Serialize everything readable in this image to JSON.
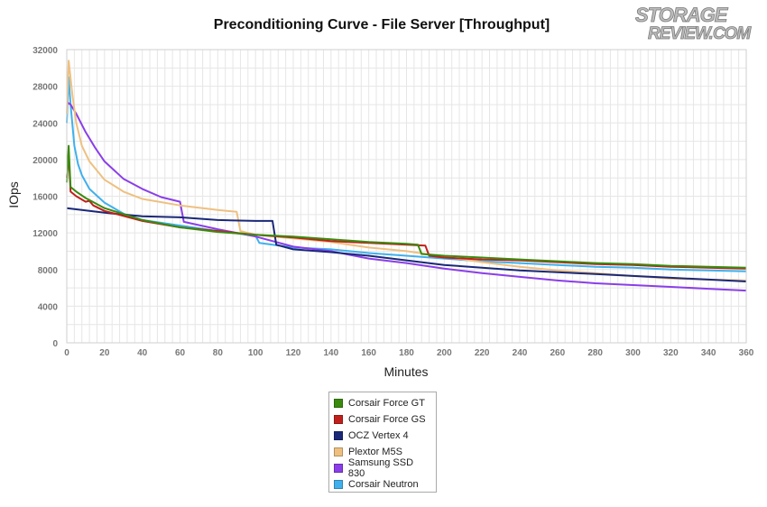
{
  "chart_data": {
    "type": "line",
    "title": "Preconditioning Curve - File Server [Throughput]",
    "xlabel": "Minutes",
    "ylabel": "IOps",
    "xlim": [
      0,
      360
    ],
    "ylim": [
      0,
      32000
    ],
    "x_ticks": [
      "0",
      "20",
      "40",
      "60",
      "80",
      "100",
      "120",
      "140",
      "160",
      "180",
      "200",
      "220",
      "240",
      "260",
      "280",
      "300",
      "320",
      "340",
      "360"
    ],
    "y_ticks": [
      "0",
      "4000",
      "8000",
      "12000",
      "16000",
      "20000",
      "24000",
      "28000",
      "32000"
    ],
    "grid": true,
    "legend_position": "bottom",
    "series": [
      {
        "name": "Corsair Force GT",
        "color": "#3a8a0e",
        "points": [
          [
            0,
            17500
          ],
          [
            1,
            21500
          ],
          [
            2,
            17000
          ],
          [
            5,
            16500
          ],
          [
            10,
            15800
          ],
          [
            20,
            14700
          ],
          [
            40,
            13400
          ],
          [
            60,
            12600
          ],
          [
            80,
            12100
          ],
          [
            100,
            11800
          ],
          [
            120,
            11600
          ],
          [
            140,
            11300
          ],
          [
            160,
            11000
          ],
          [
            180,
            10800
          ],
          [
            186,
            10700
          ],
          [
            188,
            9700
          ],
          [
            200,
            9500
          ],
          [
            220,
            9300
          ],
          [
            240,
            9100
          ],
          [
            260,
            8900
          ],
          [
            280,
            8700
          ],
          [
            300,
            8600
          ],
          [
            320,
            8400
          ],
          [
            340,
            8300
          ],
          [
            360,
            8200
          ]
        ]
      },
      {
        "name": "Corsair Force GS",
        "color": "#c0201c",
        "points": [
          [
            0,
            18000
          ],
          [
            1,
            20700
          ],
          [
            2,
            16500
          ],
          [
            5,
            16000
          ],
          [
            10,
            15400
          ],
          [
            12,
            15500
          ],
          [
            14,
            15000
          ],
          [
            20,
            14400
          ],
          [
            40,
            13300
          ],
          [
            60,
            12600
          ],
          [
            80,
            12200
          ],
          [
            100,
            11800
          ],
          [
            120,
            11500
          ],
          [
            140,
            11100
          ],
          [
            160,
            10900
          ],
          [
            180,
            10700
          ],
          [
            190,
            10600
          ],
          [
            192,
            9500
          ],
          [
            200,
            9300
          ],
          [
            220,
            9100
          ],
          [
            240,
            9000
          ],
          [
            260,
            8800
          ],
          [
            280,
            8600
          ],
          [
            300,
            8500
          ],
          [
            320,
            8300
          ],
          [
            340,
            8200
          ],
          [
            360,
            8100
          ]
        ]
      },
      {
        "name": "OCZ Vertex 4",
        "color": "#1a2878",
        "points": [
          [
            0,
            14700
          ],
          [
            20,
            14200
          ],
          [
            40,
            13800
          ],
          [
            60,
            13700
          ],
          [
            80,
            13400
          ],
          [
            100,
            13300
          ],
          [
            109,
            13300
          ],
          [
            111,
            10700
          ],
          [
            120,
            10200
          ],
          [
            140,
            9900
          ],
          [
            160,
            9500
          ],
          [
            180,
            9000
          ],
          [
            200,
            8500
          ],
          [
            220,
            8200
          ],
          [
            240,
            7900
          ],
          [
            260,
            7700
          ],
          [
            280,
            7500
          ],
          [
            300,
            7300
          ],
          [
            320,
            7100
          ],
          [
            340,
            6900
          ],
          [
            360,
            6700
          ]
        ]
      },
      {
        "name": "Plextor M5S",
        "color": "#eec080",
        "points": [
          [
            0,
            25000
          ],
          [
            1,
            30800
          ],
          [
            3,
            27000
          ],
          [
            5,
            24000
          ],
          [
            8,
            21500
          ],
          [
            12,
            19800
          ],
          [
            20,
            17800
          ],
          [
            30,
            16500
          ],
          [
            40,
            15700
          ],
          [
            60,
            15000
          ],
          [
            80,
            14500
          ],
          [
            90,
            14300
          ],
          [
            92,
            12200
          ],
          [
            100,
            11800
          ],
          [
            120,
            11400
          ],
          [
            140,
            11000
          ],
          [
            160,
            10400
          ],
          [
            180,
            10000
          ],
          [
            200,
            9400
          ],
          [
            220,
            8800
          ],
          [
            240,
            8300
          ],
          [
            260,
            7900
          ],
          [
            280,
            7600
          ],
          [
            300,
            7300
          ],
          [
            320,
            7000
          ],
          [
            340,
            6900
          ],
          [
            360,
            6800
          ]
        ]
      },
      {
        "name": "Samsung SSD 830",
        "color": "#8a3ee8",
        "points": [
          [
            0,
            26300
          ],
          [
            2,
            26000
          ],
          [
            5,
            25000
          ],
          [
            10,
            23000
          ],
          [
            15,
            21300
          ],
          [
            20,
            19800
          ],
          [
            30,
            17900
          ],
          [
            40,
            16800
          ],
          [
            50,
            15900
          ],
          [
            60,
            15400
          ],
          [
            62,
            13200
          ],
          [
            80,
            12400
          ],
          [
            100,
            11600
          ],
          [
            120,
            10500
          ],
          [
            140,
            10000
          ],
          [
            160,
            9200
          ],
          [
            180,
            8700
          ],
          [
            200,
            8100
          ],
          [
            220,
            7600
          ],
          [
            240,
            7200
          ],
          [
            260,
            6800
          ],
          [
            280,
            6500
          ],
          [
            300,
            6300
          ],
          [
            320,
            6100
          ],
          [
            340,
            5900
          ],
          [
            360,
            5700
          ]
        ]
      },
      {
        "name": "Corsair Neutron",
        "color": "#40b0ec",
        "points": [
          [
            0,
            24000
          ],
          [
            1,
            29000
          ],
          [
            2,
            26000
          ],
          [
            4,
            21500
          ],
          [
            6,
            19500
          ],
          [
            8,
            18300
          ],
          [
            12,
            16800
          ],
          [
            20,
            15300
          ],
          [
            30,
            14100
          ],
          [
            40,
            13400
          ],
          [
            60,
            12800
          ],
          [
            80,
            12200
          ],
          [
            100,
            11700
          ],
          [
            102,
            10900
          ],
          [
            120,
            10400
          ],
          [
            140,
            10200
          ],
          [
            160,
            9800
          ],
          [
            180,
            9500
          ],
          [
            200,
            9200
          ],
          [
            220,
            8900
          ],
          [
            240,
            8700
          ],
          [
            260,
            8500
          ],
          [
            280,
            8300
          ],
          [
            300,
            8200
          ],
          [
            320,
            8000
          ],
          [
            340,
            7900
          ],
          [
            360,
            7800
          ]
        ]
      }
    ]
  },
  "watermark": {
    "line1": "STORAGE",
    "line2": "REVIEW.COM"
  }
}
